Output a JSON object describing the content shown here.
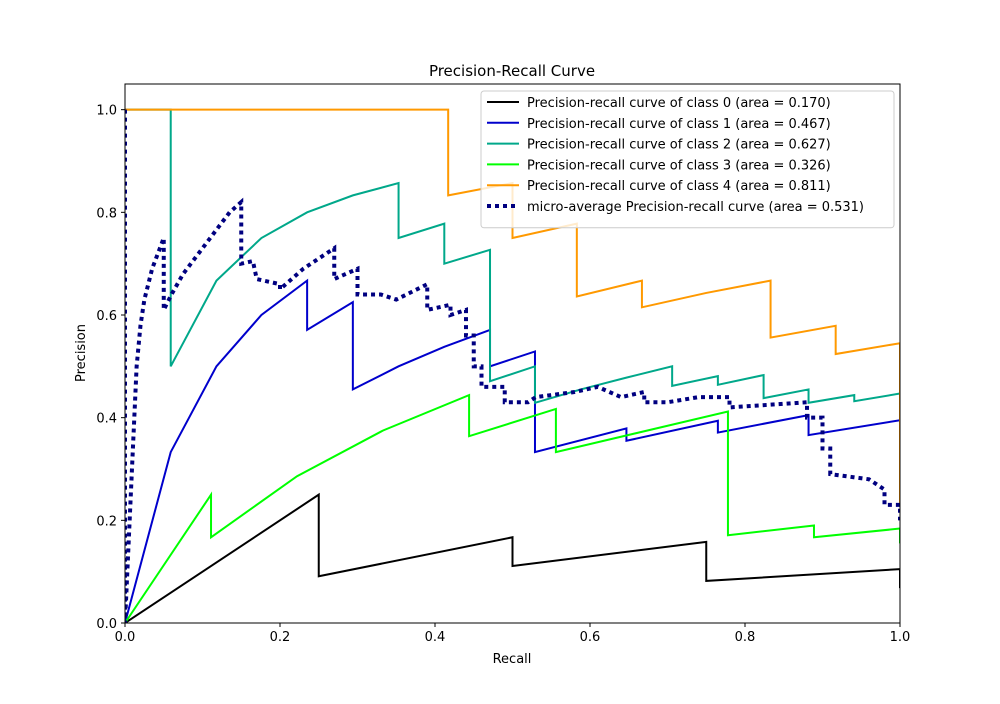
{
  "chart_data": {
    "type": "line",
    "title": "Precision-Recall Curve",
    "xlabel": "Recall",
    "ylabel": "Precision",
    "xlim": [
      0,
      1
    ],
    "ylim": [
      0,
      1.05
    ],
    "xticks": [
      0,
      0.2,
      0.4,
      0.6,
      0.8,
      1.0
    ],
    "xtick_labels": [
      "0.0",
      "0.2",
      "0.4",
      "0.6",
      "0.8",
      "1.0"
    ],
    "yticks": [
      0,
      0.2,
      0.4,
      0.6,
      0.8,
      1.0
    ],
    "ytick_labels": [
      "0.0",
      "0.2",
      "0.4",
      "0.6",
      "0.8",
      "1.0"
    ],
    "grid": false,
    "legend_position": "upper right",
    "series": [
      {
        "name": "Precision-recall curve of class 0 (area = 0.170)",
        "color": "#000000",
        "dash": "solid",
        "points": [
          [
            0,
            0
          ],
          [
            0.25,
            0.25
          ],
          [
            0.25,
            0.091
          ],
          [
            0.5,
            0.167
          ],
          [
            0.5,
            0.111
          ],
          [
            0.75,
            0.158
          ],
          [
            0.75,
            0.082
          ],
          [
            1.0,
            0.105
          ],
          [
            1.0,
            0.068
          ]
        ]
      },
      {
        "name": "Precision-recall curve of class 1 (area = 0.467)",
        "color": "#0000cc",
        "dash": "solid",
        "points": [
          [
            0,
            0
          ],
          [
            0.059,
            0.333
          ],
          [
            0.118,
            0.5
          ],
          [
            0.176,
            0.6
          ],
          [
            0.235,
            0.667
          ],
          [
            0.235,
            0.571
          ],
          [
            0.294,
            0.625
          ],
          [
            0.294,
            0.455
          ],
          [
            0.353,
            0.5
          ],
          [
            0.412,
            0.538
          ],
          [
            0.471,
            0.571
          ],
          [
            0.471,
            0.5
          ],
          [
            0.529,
            0.529
          ],
          [
            0.529,
            0.333
          ],
          [
            0.647,
            0.379
          ],
          [
            0.647,
            0.355
          ],
          [
            0.765,
            0.394
          ],
          [
            0.765,
            0.371
          ],
          [
            0.882,
            0.405
          ],
          [
            0.882,
            0.366
          ],
          [
            1.0,
            0.395
          ]
        ]
      },
      {
        "name": "Precision-recall curve of class 2 (area = 0.627)",
        "color": "#00a88a",
        "dash": "solid",
        "points": [
          [
            0,
            1.0
          ],
          [
            0.059,
            1.0
          ],
          [
            0.059,
            0.5
          ],
          [
            0.118,
            0.667
          ],
          [
            0.176,
            0.75
          ],
          [
            0.235,
            0.8
          ],
          [
            0.294,
            0.833
          ],
          [
            0.353,
            0.857
          ],
          [
            0.353,
            0.75
          ],
          [
            0.412,
            0.778
          ],
          [
            0.412,
            0.7
          ],
          [
            0.471,
            0.727
          ],
          [
            0.471,
            0.471
          ],
          [
            0.529,
            0.5
          ],
          [
            0.529,
            0.429
          ],
          [
            0.588,
            0.455
          ],
          [
            0.647,
            0.478
          ],
          [
            0.706,
            0.5
          ],
          [
            0.706,
            0.462
          ],
          [
            0.765,
            0.481
          ],
          [
            0.765,
            0.464
          ],
          [
            0.824,
            0.483
          ],
          [
            0.824,
            0.438
          ],
          [
            0.882,
            0.455
          ],
          [
            0.882,
            0.429
          ],
          [
            0.941,
            0.444
          ],
          [
            0.941,
            0.432
          ],
          [
            1.0,
            0.447
          ]
        ]
      },
      {
        "name": "Precision-recall curve of class 3 (area = 0.326)",
        "color": "#00ff00",
        "dash": "solid",
        "points": [
          [
            0,
            0
          ],
          [
            0.111,
            0.25
          ],
          [
            0.111,
            0.167
          ],
          [
            0.222,
            0.286
          ],
          [
            0.333,
            0.375
          ],
          [
            0.444,
            0.444
          ],
          [
            0.444,
            0.364
          ],
          [
            0.556,
            0.417
          ],
          [
            0.556,
            0.333
          ],
          [
            0.778,
            0.412
          ],
          [
            0.778,
            0.171
          ],
          [
            0.889,
            0.19
          ],
          [
            0.889,
            0.167
          ],
          [
            1.0,
            0.184
          ],
          [
            1.0,
            0.155
          ]
        ]
      },
      {
        "name": "Precision-recall curve of class 4 (area = 0.811)",
        "color": "#ff9900",
        "dash": "solid",
        "points": [
          [
            0,
            1.0
          ],
          [
            0.417,
            1.0
          ],
          [
            0.417,
            0.833
          ],
          [
            0.5,
            0.857
          ],
          [
            0.5,
            0.75
          ],
          [
            0.583,
            0.778
          ],
          [
            0.583,
            0.636
          ],
          [
            0.667,
            0.667
          ],
          [
            0.667,
            0.615
          ],
          [
            0.75,
            0.643
          ],
          [
            0.833,
            0.667
          ],
          [
            0.833,
            0.556
          ],
          [
            0.917,
            0.579
          ],
          [
            0.917,
            0.524
          ],
          [
            1.0,
            0.545
          ],
          [
            1.0,
            0.231
          ]
        ]
      },
      {
        "name": "micro-average Precision-recall curve (area = 0.531)",
        "color": "#000080",
        "dash": "dotted",
        "points": [
          [
            0,
            1.0
          ],
          [
            0,
            0.0
          ],
          [
            0.003,
            0.1
          ],
          [
            0.006,
            0.2
          ],
          [
            0.009,
            0.3
          ],
          [
            0.012,
            0.4
          ],
          [
            0.015,
            0.5
          ],
          [
            0.02,
            0.58
          ],
          [
            0.025,
            0.63
          ],
          [
            0.035,
            0.69
          ],
          [
            0.045,
            0.73
          ],
          [
            0.05,
            0.75
          ],
          [
            0.05,
            0.61
          ],
          [
            0.06,
            0.64
          ],
          [
            0.075,
            0.68
          ],
          [
            0.09,
            0.71
          ],
          [
            0.105,
            0.74
          ],
          [
            0.12,
            0.77
          ],
          [
            0.135,
            0.8
          ],
          [
            0.15,
            0.82
          ],
          [
            0.15,
            0.7
          ],
          [
            0.165,
            0.705
          ],
          [
            0.17,
            0.67
          ],
          [
            0.2,
            0.66
          ],
          [
            0.2,
            0.65
          ],
          [
            0.23,
            0.69
          ],
          [
            0.27,
            0.73
          ],
          [
            0.27,
            0.67
          ],
          [
            0.3,
            0.69
          ],
          [
            0.3,
            0.64
          ],
          [
            0.33,
            0.64
          ],
          [
            0.35,
            0.63
          ],
          [
            0.39,
            0.66
          ],
          [
            0.39,
            0.61
          ],
          [
            0.42,
            0.62
          ],
          [
            0.42,
            0.6
          ],
          [
            0.44,
            0.61
          ],
          [
            0.44,
            0.56
          ],
          [
            0.45,
            0.56
          ],
          [
            0.45,
            0.5
          ],
          [
            0.46,
            0.5
          ],
          [
            0.46,
            0.46
          ],
          [
            0.49,
            0.46
          ],
          [
            0.49,
            0.43
          ],
          [
            0.52,
            0.43
          ],
          [
            0.53,
            0.44
          ],
          [
            0.58,
            0.45
          ],
          [
            0.61,
            0.46
          ],
          [
            0.64,
            0.44
          ],
          [
            0.67,
            0.45
          ],
          [
            0.67,
            0.43
          ],
          [
            0.7,
            0.43
          ],
          [
            0.74,
            0.44
          ],
          [
            0.78,
            0.44
          ],
          [
            0.78,
            0.42
          ],
          [
            0.88,
            0.43
          ],
          [
            0.88,
            0.4
          ],
          [
            0.9,
            0.4
          ],
          [
            0.9,
            0.34
          ],
          [
            0.91,
            0.34
          ],
          [
            0.91,
            0.29
          ],
          [
            0.96,
            0.28
          ],
          [
            0.98,
            0.26
          ],
          [
            0.98,
            0.23
          ],
          [
            1.0,
            0.23
          ],
          [
            1.0,
            0.2
          ]
        ]
      }
    ]
  }
}
